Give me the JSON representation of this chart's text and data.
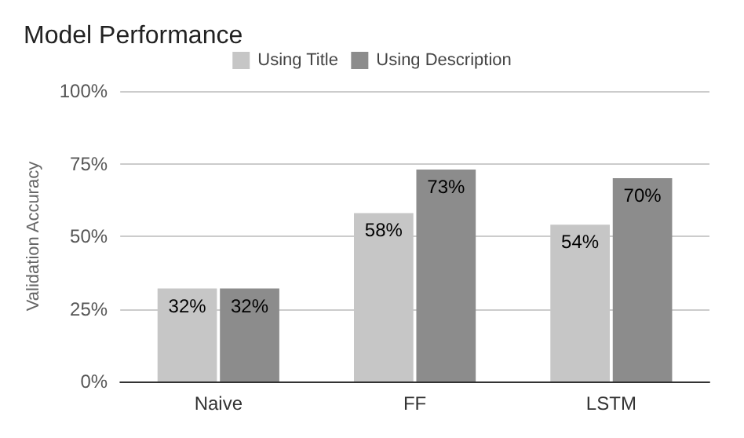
{
  "chart_data": {
    "type": "bar",
    "title": "Model Performance",
    "ylabel": "Validation Accuracy",
    "categories": [
      "Naive",
      "FF",
      "LSTM"
    ],
    "series": [
      {
        "name": "Using Title",
        "color": "#c6c6c6",
        "values": [
          32,
          58,
          54
        ],
        "value_labels": [
          "32%",
          "58%",
          "54%"
        ]
      },
      {
        "name": "Using Description",
        "color": "#8c8c8c",
        "values": [
          32,
          73,
          70
        ],
        "value_labels": [
          "32%",
          "73%",
          "70%"
        ]
      }
    ],
    "ylim": [
      0,
      100
    ],
    "yticks": [
      {
        "value": 0,
        "label": "0%"
      },
      {
        "value": 25,
        "label": "25%"
      },
      {
        "value": 50,
        "label": "50%"
      },
      {
        "value": 75,
        "label": "75%"
      },
      {
        "value": 100,
        "label": "100%"
      }
    ],
    "grid": "y",
    "legend": "top"
  }
}
